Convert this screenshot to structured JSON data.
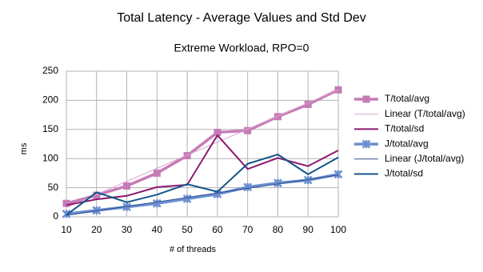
{
  "chart_data": {
    "type": "line",
    "title": "Total Latency - Average Values and Std Dev",
    "subtitle": "Extreme Workload, RPO=0",
    "x_label": "# of threads",
    "y_label": "ms",
    "x": [
      10,
      20,
      30,
      40,
      50,
      60,
      70,
      80,
      90,
      100
    ],
    "xlim": [
      10,
      100
    ],
    "xticks": [
      10,
      20,
      30,
      40,
      50,
      60,
      70,
      80,
      90,
      100
    ],
    "ylim": [
      0,
      250
    ],
    "yticks": [
      0,
      50,
      100,
      150,
      200,
      250
    ],
    "grid": true,
    "legend": "right",
    "series": [
      {
        "name": "T/total/avg",
        "color": "#c67bb6",
        "marker": "square",
        "width": 3.5,
        "values": [
          23,
          37,
          53,
          75,
          105,
          145,
          148,
          172,
          193,
          218
        ]
      },
      {
        "name": "Linear (T/total/avg)",
        "color": "#d9a3cf",
        "width": 1,
        "values": [
          16,
          38.4,
          60.9,
          83.3,
          105.8,
          128.2,
          150.6,
          173.1,
          195.5,
          217.9
        ]
      },
      {
        "name": "T/total/sd",
        "color": "#8b1a70",
        "width": 2,
        "values": [
          20,
          30,
          36,
          51,
          55,
          140,
          82,
          101,
          87,
          114
        ]
      },
      {
        "name": "J/total/avg",
        "color": "#6a8fd0",
        "marker": "star",
        "width": 3.5,
        "values": [
          5,
          11,
          17,
          23,
          31,
          39,
          51,
          58,
          63,
          73
        ]
      },
      {
        "name": "Linear (J/total/avg)",
        "color": "#2e4f8c",
        "width": 1,
        "values": [
          2.4,
          10.1,
          17.8,
          25.5,
          33.2,
          41.0,
          48.7,
          56.4,
          64.1,
          71.8
        ]
      },
      {
        "name": "J/total/sd",
        "color": "#14568a",
        "width": 2,
        "values": [
          3,
          42,
          25,
          38,
          56,
          43,
          91,
          107,
          73,
          102
        ]
      }
    ]
  }
}
